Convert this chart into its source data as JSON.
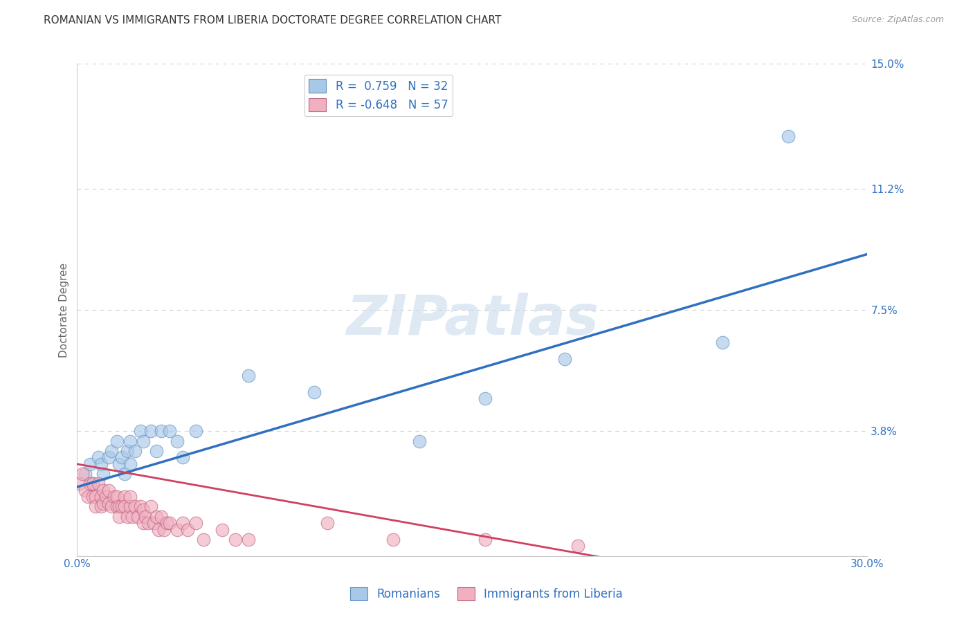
{
  "title": "ROMANIAN VS IMMIGRANTS FROM LIBERIA DOCTORATE DEGREE CORRELATION CHART",
  "source": "Source: ZipAtlas.com",
  "ylabel": "Doctorate Degree",
  "xlim": [
    0.0,
    0.3
  ],
  "ylim": [
    0.0,
    0.15
  ],
  "xticks": [
    0.0,
    0.05,
    0.1,
    0.15,
    0.2,
    0.25,
    0.3
  ],
  "xtick_labels": [
    "0.0%",
    "",
    "",
    "",
    "",
    "",
    "30.0%"
  ],
  "yticks": [
    0.0,
    0.038,
    0.075,
    0.112,
    0.15
  ],
  "ytick_labels": [
    "",
    "3.8%",
    "7.5%",
    "11.2%",
    "15.0%"
  ],
  "blue_R": 0.759,
  "blue_N": 32,
  "pink_R": -0.648,
  "pink_N": 57,
  "blue_color": "#a8c8e8",
  "pink_color": "#f0b0c0",
  "blue_line_color": "#3070c0",
  "pink_line_color": "#d04060",
  "watermark": "ZIPatlas",
  "background_color": "#ffffff",
  "grid_color": "#d0d0d0",
  "legend_label_blue": "Romanians",
  "legend_label_pink": "Immigrants from Liberia",
  "blue_scatter_x": [
    0.003,
    0.005,
    0.006,
    0.008,
    0.009,
    0.01,
    0.012,
    0.013,
    0.015,
    0.016,
    0.017,
    0.018,
    0.019,
    0.02,
    0.02,
    0.022,
    0.024,
    0.025,
    0.028,
    0.03,
    0.032,
    0.035,
    0.038,
    0.04,
    0.045,
    0.065,
    0.09,
    0.13,
    0.155,
    0.185,
    0.245,
    0.27
  ],
  "blue_scatter_y": [
    0.025,
    0.028,
    0.022,
    0.03,
    0.028,
    0.025,
    0.03,
    0.032,
    0.035,
    0.028,
    0.03,
    0.025,
    0.032,
    0.035,
    0.028,
    0.032,
    0.038,
    0.035,
    0.038,
    0.032,
    0.038,
    0.038,
    0.035,
    0.03,
    0.038,
    0.055,
    0.05,
    0.035,
    0.048,
    0.06,
    0.065,
    0.128
  ],
  "pink_scatter_x": [
    0.001,
    0.002,
    0.003,
    0.004,
    0.005,
    0.006,
    0.006,
    0.007,
    0.007,
    0.008,
    0.009,
    0.009,
    0.01,
    0.01,
    0.011,
    0.012,
    0.012,
    0.013,
    0.014,
    0.015,
    0.015,
    0.016,
    0.016,
    0.017,
    0.018,
    0.018,
    0.019,
    0.02,
    0.02,
    0.021,
    0.022,
    0.023,
    0.024,
    0.025,
    0.025,
    0.026,
    0.027,
    0.028,
    0.029,
    0.03,
    0.031,
    0.032,
    0.033,
    0.034,
    0.035,
    0.038,
    0.04,
    0.042,
    0.045,
    0.048,
    0.055,
    0.06,
    0.065,
    0.095,
    0.12,
    0.155,
    0.19
  ],
  "pink_scatter_y": [
    0.022,
    0.025,
    0.02,
    0.018,
    0.022,
    0.018,
    0.022,
    0.018,
    0.015,
    0.022,
    0.018,
    0.015,
    0.02,
    0.016,
    0.018,
    0.016,
    0.02,
    0.015,
    0.018,
    0.015,
    0.018,
    0.015,
    0.012,
    0.015,
    0.018,
    0.015,
    0.012,
    0.015,
    0.018,
    0.012,
    0.015,
    0.012,
    0.015,
    0.01,
    0.014,
    0.012,
    0.01,
    0.015,
    0.01,
    0.012,
    0.008,
    0.012,
    0.008,
    0.01,
    0.01,
    0.008,
    0.01,
    0.008,
    0.01,
    0.005,
    0.008,
    0.005,
    0.005,
    0.01,
    0.005,
    0.005,
    0.003
  ],
  "blue_line_x0": 0.0,
  "blue_line_y0": 0.021,
  "blue_line_x1": 0.3,
  "blue_line_y1": 0.092,
  "pink_line_x0": 0.0,
  "pink_line_y0": 0.028,
  "pink_line_x1": 0.21,
  "pink_line_y1": -0.002,
  "title_fontsize": 11,
  "tick_fontsize": 11,
  "legend_fontsize": 12,
  "ylabel_fontsize": 11
}
